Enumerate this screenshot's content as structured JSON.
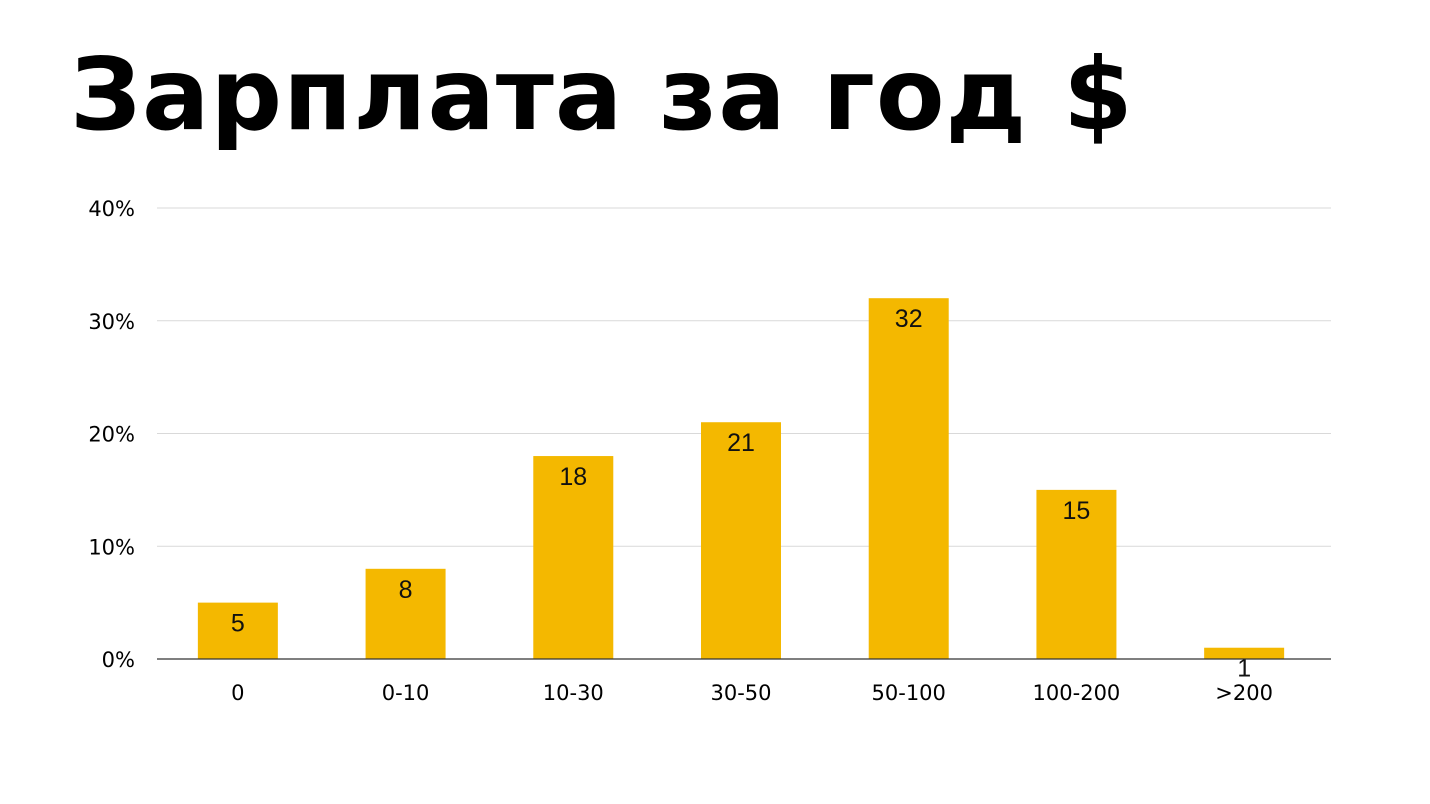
{
  "chart_data": {
    "type": "bar",
    "title": "Зарплата за год $",
    "xlabel": "",
    "ylabel": "",
    "categories": [
      "0",
      "0-10",
      "10-30",
      "30-50",
      "50-100",
      "100-200",
      ">200"
    ],
    "values": [
      5,
      8,
      18,
      21,
      32,
      15,
      1
    ],
    "data_labels": [
      "5",
      "8",
      "18",
      "21",
      "32",
      "15",
      "1"
    ],
    "ylim": [
      0,
      40
    ],
    "yticks": [
      0,
      10,
      20,
      30,
      40
    ],
    "ytick_labels": [
      "0%",
      "10%",
      "20%",
      "30%",
      "40%"
    ],
    "grid": true,
    "legend": "none",
    "colors": {
      "bar": "#F4B800",
      "grid": "#d9d9d9",
      "axis": "#333333"
    }
  }
}
